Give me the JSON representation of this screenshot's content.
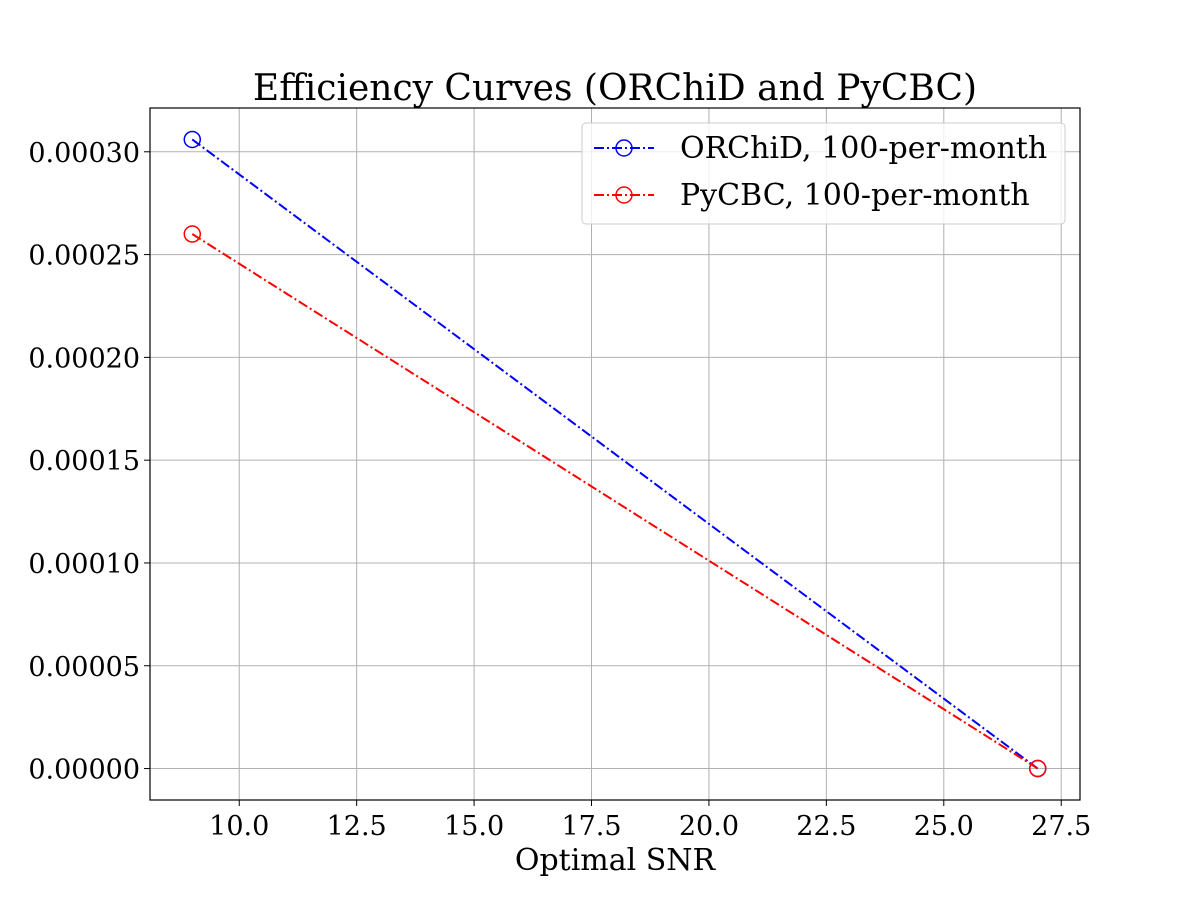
{
  "chart_data": {
    "type": "line",
    "title": "Efficiency Curves (ORChiD and PyCBC)",
    "xlabel": "Optimal SNR",
    "ylabel": "",
    "xlim": [
      8.1,
      27.9
    ],
    "ylim": [
      -1.53e-05,
      0.0003213
    ],
    "xticks": [
      10.0,
      12.5,
      15.0,
      17.5,
      20.0,
      22.5,
      25.0,
      27.5
    ],
    "xtick_labels": [
      "10.0",
      "12.5",
      "15.0",
      "17.5",
      "20.0",
      "22.5",
      "25.0",
      "27.5"
    ],
    "yticks": [
      0.0,
      5e-05,
      0.0001,
      0.00015,
      0.0002,
      0.00025,
      0.0003
    ],
    "ytick_labels": [
      "0.00000",
      "0.00005",
      "0.00010",
      "0.00015",
      "0.00020",
      "0.00025",
      "0.00030"
    ],
    "grid": true,
    "legend_position": "top-right",
    "series": [
      {
        "name": "ORChiD, 100-per-month",
        "color": "#0000ff",
        "line_style": "dashdot",
        "marker": "open-circle",
        "x": [
          9,
          27
        ],
        "y": [
          0.000306,
          0.0
        ]
      },
      {
        "name": "PyCBC, 100-per-month",
        "color": "#ff0000",
        "line_style": "dashdot",
        "marker": "open-circle",
        "x": [
          9,
          27
        ],
        "y": [
          0.00026,
          0.0
        ]
      }
    ]
  }
}
